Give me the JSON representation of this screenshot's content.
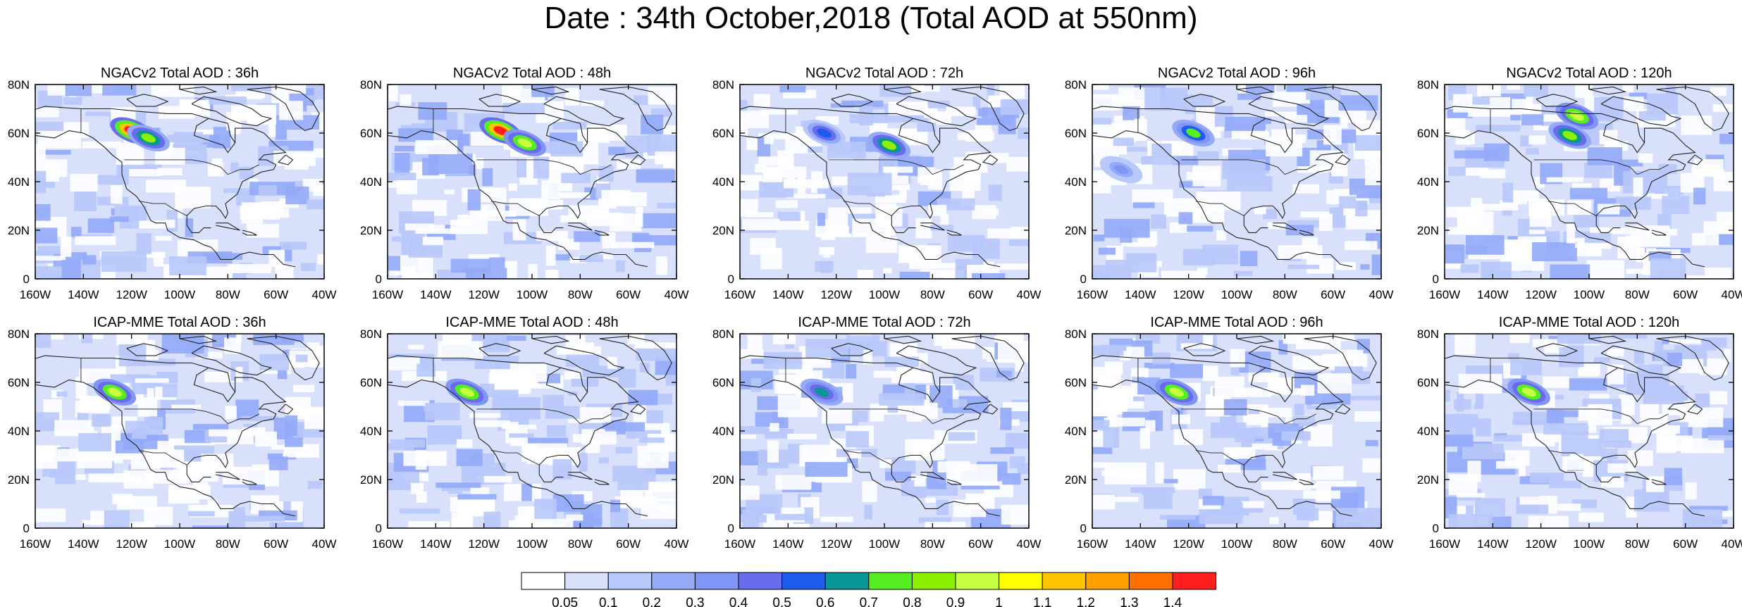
{
  "title": "Date : 34th October,2018 (Total AOD at 550nm)",
  "rows": [
    {
      "panels": [
        {
          "title": "NGACv2 Total AOD : 36h",
          "plumes": [
            {
              "lon": -120,
              "lat": 61,
              "value": 1.4
            },
            {
              "lon": -113,
              "lat": 58,
              "value": 0.8
            }
          ]
        },
        {
          "title": "NGACv2 Total AOD : 48h",
          "plumes": [
            {
              "lon": -113,
              "lat": 61,
              "value": 1.4
            },
            {
              "lon": -103,
              "lat": 56,
              "value": 0.9
            }
          ]
        },
        {
          "title": "NGACv2 Total AOD : 72h",
          "plumes": [
            {
              "lon": -98,
              "lat": 55,
              "value": 0.8
            },
            {
              "lon": -125,
              "lat": 60,
              "value": 0.5
            }
          ]
        },
        {
          "title": "NGACv2 Total AOD : 96h",
          "plumes": [
            {
              "lon": -118,
              "lat": 60,
              "value": 0.7
            },
            {
              "lon": -148,
              "lat": 45,
              "value": 0.3
            }
          ]
        },
        {
          "title": "NGACv2 Total AOD : 120h",
          "plumes": [
            {
              "lon": -105,
              "lat": 67,
              "value": 0.9
            },
            {
              "lon": -108,
              "lat": 59,
              "value": 0.8
            }
          ]
        }
      ]
    },
    {
      "panels": [
        {
          "title": "ICAP-MME Total AOD : 36h",
          "plumes": [
            {
              "lon": -127,
              "lat": 56,
              "value": 0.9
            }
          ]
        },
        {
          "title": "ICAP-MME Total AOD : 48h",
          "plumes": [
            {
              "lon": -127,
              "lat": 56,
              "value": 0.9
            }
          ]
        },
        {
          "title": "ICAP-MME Total AOD : 72h",
          "plumes": [
            {
              "lon": -126,
              "lat": 56,
              "value": 0.6
            }
          ]
        },
        {
          "title": "ICAP-MME Total AOD : 96h",
          "plumes": [
            {
              "lon": -125,
              "lat": 56,
              "value": 0.9
            }
          ]
        },
        {
          "title": "ICAP-MME Total AOD : 120h",
          "plumes": [
            {
              "lon": -125,
              "lat": 56,
              "value": 0.9
            }
          ]
        }
      ]
    }
  ],
  "lat_ticks": [
    "0",
    "20N",
    "40N",
    "60N",
    "80N"
  ],
  "lon_ticks": [
    "160W",
    "140W",
    "120W",
    "100W",
    "80W",
    "60W",
    "40W"
  ],
  "colorbar": {
    "colors": [
      "#ffffff",
      "#d8e0fc",
      "#b8c8fa",
      "#94aaf8",
      "#8095f4",
      "#6a6cee",
      "#1e5cf0",
      "#0a9696",
      "#55ee22",
      "#8cf000",
      "#c6ff40",
      "#ffff00",
      "#ffc400",
      "#ffa000",
      "#ff7000",
      "#ff1e1e"
    ],
    "labels": [
      "0.05",
      "0.1",
      "0.2",
      "0.3",
      "0.4",
      "0.5",
      "0.6",
      "0.7",
      "0.8",
      "0.9",
      "1",
      "1.1",
      "1.2",
      "1.3",
      "1.4"
    ]
  }
}
